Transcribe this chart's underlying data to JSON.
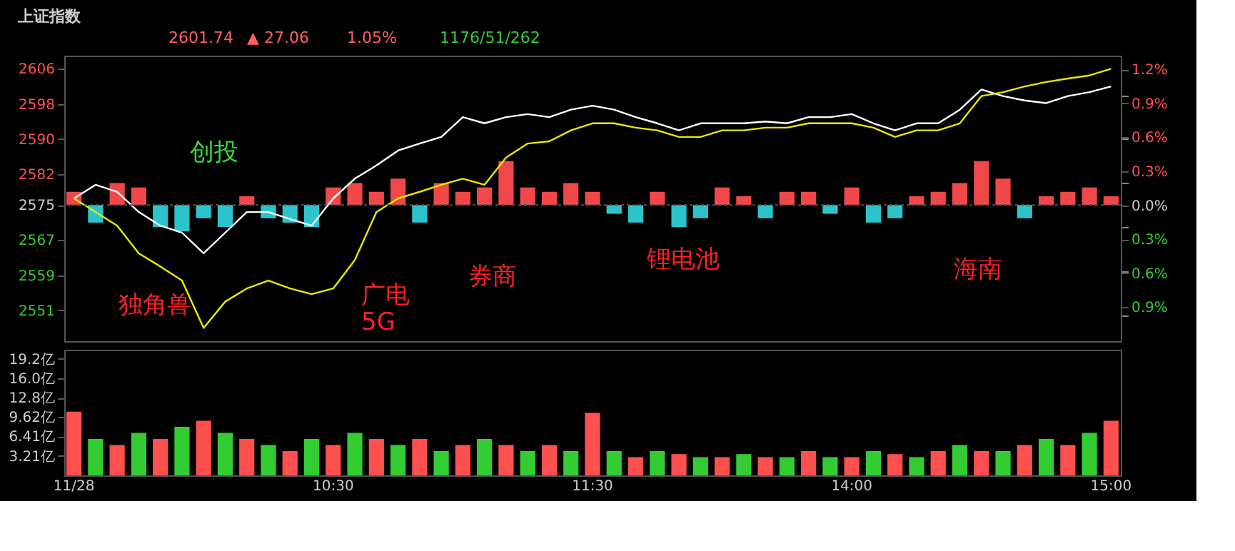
{
  "chart_data": [
    {
      "type": "line",
      "title": "上证指数",
      "categories": [
        null,
        null,
        null,
        null,
        null,
        null,
        null,
        null,
        null,
        null,
        null,
        null,
        null,
        null,
        null,
        null,
        null,
        null,
        null,
        null,
        null,
        null,
        null,
        null,
        null,
        null,
        null,
        null,
        null,
        null,
        null,
        null,
        null,
        null,
        null,
        null,
        null,
        null,
        null,
        null,
        null,
        null,
        null,
        null,
        null,
        null,
        null,
        null,
        null
      ],
      "series": [
        {
          "type": "bar",
          "base": [
            2575,
            2575,
            2575,
            2575,
            2575,
            2575,
            2575,
            2575,
            2575,
            2575,
            2575,
            2575,
            2575,
            2575,
            2575,
            2575,
            2575,
            2575,
            2575,
            2575,
            2575,
            2575,
            2575,
            2575,
            2575,
            2575,
            2575,
            2575,
            2575,
            2575,
            2575,
            2575,
            2575,
            2575,
            2575,
            2575,
            2575,
            2575,
            2575,
            2575,
            2575,
            2575,
            2575,
            2575,
            2575,
            2575,
            2575,
            2575,
            2575
          ],
          "values": [
            3,
            -4,
            5,
            4,
            -5,
            -6,
            -3,
            -5,
            2,
            -3,
            -4,
            -5,
            4,
            5,
            3,
            6,
            -4,
            5,
            3,
            4,
            10,
            4,
            3,
            5,
            3,
            -2,
            -4,
            3,
            -5,
            -3,
            4,
            2,
            -3,
            3,
            3,
            -2,
            4,
            -4,
            -3,
            2,
            3,
            5,
            10,
            6,
            -3,
            2,
            3,
            4,
            2
          ],
          "colors": [
            "#f04848",
            "#2cc4cc",
            "#f04848",
            "#f04848",
            "#2cc4cc",
            "#2cc4cc",
            "#2cc4cc",
            "#2cc4cc",
            "#f04848",
            "#2cc4cc",
            "#2cc4cc",
            "#2cc4cc",
            "#f04848",
            "#f04848",
            "#f04848",
            "#f04848",
            "#2cc4cc",
            "#f04848",
            "#f04848",
            "#f04848",
            "#f04848",
            "#f04848",
            "#f04848",
            "#f04848",
            "#f04848",
            "#2cc4cc",
            "#2cc4cc",
            "#f04848",
            "#2cc4cc",
            "#2cc4cc",
            "#f04848",
            "#f04848",
            "#2cc4cc",
            "#f04848",
            "#f04848",
            "#2cc4cc",
            "#f04848",
            "#2cc4cc",
            "#2cc4cc",
            "#f04848",
            "#f04848",
            "#f04848",
            "#f04848",
            "#f04848",
            "#2cc4cc",
            "#f04848",
            "#f04848",
            "#f04848",
            "#f04848"
          ]
        },
        {
          "type": "line",
          "color": "#ffffff",
          "values": [
            2576.5,
            2579.6,
            2578,
            2573.4,
            2570.3,
            2568.7,
            2564,
            2568.7,
            2573.4,
            2573.4,
            2571.8,
            2570.3,
            2576.5,
            2581,
            2584,
            2587.4,
            2589,
            2590.5,
            2595,
            2593.6,
            2595,
            2595.7,
            2595,
            2596.7,
            2597.6,
            2596.7,
            2595,
            2593.6,
            2592,
            2593.6,
            2593.6,
            2593.6,
            2594,
            2593.6,
            2595,
            2595,
            2595.7,
            2593.6,
            2592,
            2593.6,
            2593.6,
            2596.7,
            2601.3,
            2599.8,
            2598.8,
            2598.2,
            2599.8,
            2600.7,
            2602
          ]
        },
        {
          "type": "line",
          "color": "#e8e800",
          "values": [
            2576.5,
            2573.4,
            2570.3,
            2564,
            2561,
            2557.8,
            2547,
            2553,
            2556,
            2557.8,
            2556,
            2554.7,
            2556,
            2562.5,
            2573.4,
            2576.5,
            2578,
            2579.6,
            2581,
            2579.6,
            2585.8,
            2589,
            2589.5,
            2592,
            2593.6,
            2593.6,
            2592.6,
            2592,
            2590.5,
            2590.5,
            2592,
            2592,
            2592.6,
            2592.6,
            2593.6,
            2593.6,
            2593.6,
            2592.6,
            2590.5,
            2592,
            2592,
            2593.6,
            2599.8,
            2600.7,
            2602,
            2603,
            2603.8,
            2604.5,
            2606
          ]
        }
      ],
      "ylim": [
        2544,
        2609
      ],
      "yticks": [
        2551,
        2559,
        2567,
        2575,
        2582,
        2590,
        2598,
        2606
      ],
      "y2lim": [
        -1.2,
        1.32
      ],
      "y2ticks": [
        {
          "value": 1.2,
          "label": "1.2%"
        },
        {
          "value": 0.9,
          "label": "0.9%"
        },
        {
          "value": 0.6,
          "label": "0.6%"
        },
        {
          "value": 0.3,
          "label": "0.3%"
        },
        {
          "value": 0,
          "label": "0.0%"
        },
        {
          "value": -0.3,
          "label": "0.3%"
        },
        {
          "value": -0.6,
          "label": "0.6%"
        },
        {
          "value": -0.9,
          "label": "0.9%"
        }
      ],
      "ref_lines": [
        {
          "axis": "y",
          "value": 2575
        }
      ],
      "tick_labels": "y",
      "grid": false,
      "annotations": [
        "2601.74",
        "▲ 27.06",
        "1.05%",
        "1176/51/262",
        "独角兽",
        "创投",
        "广电\n5G",
        "券商",
        "锂电池",
        "海南"
      ]
    },
    {
      "type": "bar",
      "categories": [
        "11/28",
        null,
        null,
        null,
        null,
        null,
        null,
        null,
        null,
        null,
        null,
        null,
        "10:30",
        null,
        null,
        null,
        null,
        null,
        null,
        null,
        null,
        null,
        null,
        null,
        "11:30",
        null,
        null,
        null,
        null,
        null,
        null,
        null,
        null,
        null,
        null,
        null,
        "14:00",
        null,
        null,
        null,
        null,
        null,
        null,
        null,
        null,
        null,
        null,
        null,
        "15:00"
      ],
      "values": [
        10.5,
        6,
        5,
        7,
        6,
        8,
        9,
        7,
        6,
        5,
        4,
        6,
        5,
        7,
        6,
        5,
        6,
        4,
        5,
        6,
        5,
        4,
        5,
        4,
        10.3,
        4,
        3,
        4,
        3.5,
        3,
        3,
        3.5,
        3,
        3,
        4,
        3,
        3,
        4,
        3.5,
        3,
        4,
        5,
        4,
        4,
        5,
        6,
        5,
        7,
        9
      ],
      "colors": [
        "#ff5050",
        "#33cc33",
        "#ff5050",
        "#33cc33",
        "#ff5050",
        "#33cc33",
        "#ff5050",
        "#33cc33",
        "#ff5050",
        "#33cc33",
        "#ff5050",
        "#33cc33",
        "#ff5050",
        "#33cc33",
        "#ff5050",
        "#33cc33",
        "#ff5050",
        "#33cc33",
        "#ff5050",
        "#33cc33",
        "#ff5050",
        "#33cc33",
        "#ff5050",
        "#33cc33",
        "#ff5050",
        "#33cc33",
        "#ff5050",
        "#33cc33",
        "#ff5050",
        "#33cc33",
        "#ff5050",
        "#33cc33",
        "#ff5050",
        "#33cc33",
        "#ff5050",
        "#33cc33",
        "#ff5050",
        "#33cc33",
        "#ff5050",
        "#33cc33",
        "#ff5050",
        "#33cc33",
        "#ff5050",
        "#33cc33",
        "#ff5050",
        "#33cc33",
        "#ff5050",
        "#33cc33",
        "#ff5050"
      ],
      "ylim": [
        0,
        20.7
      ],
      "yticks": [
        {
          "value": 3.21,
          "label": "3.21亿"
        },
        {
          "value": 6.41,
          "label": "6.41亿"
        },
        {
          "value": 9.62,
          "label": "9.62亿"
        },
        {
          "value": 12.8,
          "label": "12.8亿"
        },
        {
          "value": 16.0,
          "label": "16.0亿"
        },
        {
          "value": 19.2,
          "label": "19.2亿"
        }
      ],
      "grid": false
    }
  ]
}
